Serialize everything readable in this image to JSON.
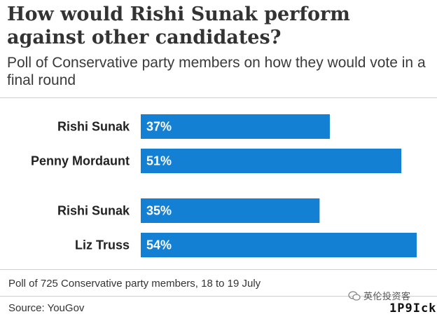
{
  "header": {
    "title": "How would Rishi Sunak perform against other candidates?",
    "subtitle": "Poll of Conservative party members on how they would vote in a final round"
  },
  "footer": {
    "note": "Poll of 725 Conservative party members, 18 to 19 July",
    "source": "Source: YouGov"
  },
  "watermark": {
    "text": "英伦投资客",
    "brand": "1P9Ick"
  },
  "colors": {
    "bar": "#1380d4",
    "bar_label": "#ffffff",
    "category_label": "#222222"
  },
  "chart_data": {
    "type": "bar",
    "orientation": "horizontal",
    "title": "How would Rishi Sunak perform against other candidates?",
    "subtitle": "Poll of Conservative party members on how they would vote in a final round",
    "xlim": [
      0,
      54
    ],
    "unit": "%",
    "grid": false,
    "groups": [
      {
        "bars": [
          {
            "label": "Rishi Sunak",
            "value": 37,
            "display": "37%"
          },
          {
            "label": "Penny Mordaunt",
            "value": 51,
            "display": "51%"
          }
        ]
      },
      {
        "bars": [
          {
            "label": "Rishi Sunak",
            "value": 35,
            "display": "35%"
          },
          {
            "label": "Liz Truss",
            "value": 54,
            "display": "54%"
          }
        ]
      }
    ]
  }
}
